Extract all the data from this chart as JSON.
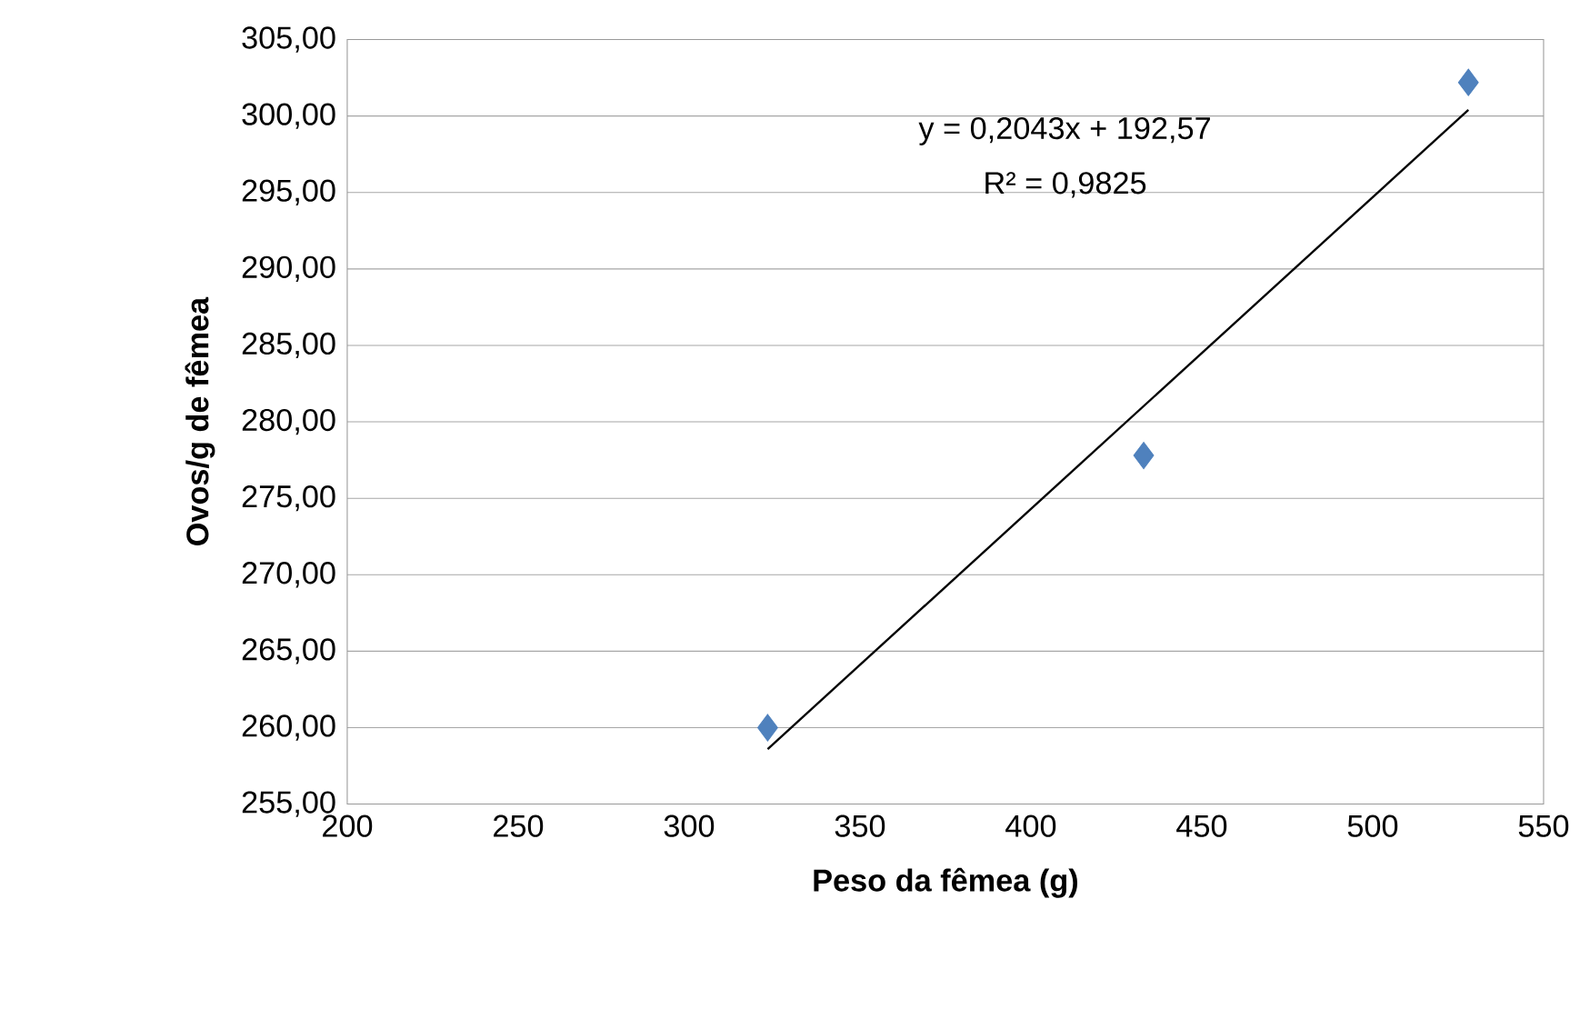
{
  "chart_data": {
    "type": "scatter",
    "xlabel": "Peso da fêmea (g)",
    "ylabel": "Ovos/g de fêmea",
    "annotations": [
      "y = 0,2043x + 192,57",
      "R² = 0,9825"
    ],
    "series": [
      {
        "color": "#4f81bd",
        "x": [
          323,
          433,
          528
        ],
        "values": [
          260.0,
          277.8,
          302.2
        ]
      },
      {
        "type": "line",
        "marker": "none",
        "color": "#000000",
        "x": [
          323,
          528
        ],
        "values": [
          258.6,
          300.4
        ]
      }
    ],
    "xlim": [
      200,
      550
    ],
    "xticks": [
      200,
      250,
      300,
      350,
      400,
      450,
      500,
      550
    ],
    "ylim": [
      255,
      305
    ],
    "yticks": [
      {
        "value": 255,
        "label": "255,00"
      },
      {
        "value": 260,
        "label": "260,00"
      },
      {
        "value": 265,
        "label": "265,00"
      },
      {
        "value": 270,
        "label": "270,00"
      },
      {
        "value": 275,
        "label": "275,00"
      },
      {
        "value": 280,
        "label": "280,00"
      },
      {
        "value": 285,
        "label": "285,00"
      },
      {
        "value": 290,
        "label": "290,00"
      },
      {
        "value": 295,
        "label": "295,00"
      },
      {
        "value": 300,
        "label": "300,00"
      },
      {
        "value": 305,
        "label": "305,00"
      }
    ],
    "grid": "y",
    "marker": "diamond"
  }
}
